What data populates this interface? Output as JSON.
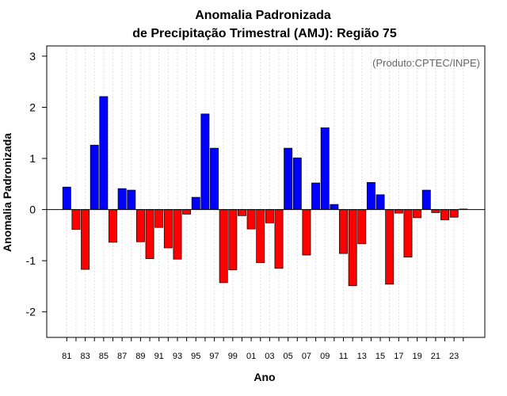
{
  "chart_data": {
    "type": "bar",
    "title": "Anomalia Padronizada",
    "subtitle": "de Precipitação Trimestral (AMJ): Região 75",
    "xlabel": "Ano",
    "ylabel": "Anomalia Padronizada",
    "credit": "(Produto:CPTEC/INPE)",
    "ylim": [
      -2.5,
      3.2
    ],
    "yticks": [
      "-2",
      "-1",
      "0",
      "1",
      "2",
      "3"
    ],
    "ytick_values": [
      -2,
      -1,
      0,
      1,
      2,
      3
    ],
    "grid": "vertical dotted",
    "positive_color": "#0000ff",
    "negative_color": "#ff0000",
    "x": [
      1981,
      1982,
      1983,
      1984,
      1985,
      1986,
      1987,
      1988,
      1989,
      1990,
      1991,
      1992,
      1993,
      1994,
      1995,
      1996,
      1997,
      1998,
      1999,
      2000,
      2001,
      2002,
      2003,
      2004,
      2005,
      2006,
      2007,
      2008,
      2009,
      2010,
      2011,
      2012,
      2013,
      2014,
      2015,
      2016,
      2017,
      2018,
      2019,
      2020,
      2021,
      2022,
      2023,
      2024
    ],
    "values": [
      0.44,
      -0.39,
      -1.17,
      1.26,
      2.21,
      -0.64,
      0.41,
      0.38,
      -0.63,
      -0.96,
      -0.35,
      -0.75,
      -0.97,
      -0.09,
      0.24,
      1.87,
      1.2,
      -1.43,
      -1.18,
      -0.12,
      -0.38,
      -1.04,
      -0.26,
      -1.15,
      1.2,
      1.01,
      -0.89,
      0.52,
      1.6,
      0.1,
      -0.86,
      -1.49,
      -0.67,
      0.53,
      0.29,
      -1.46,
      -0.07,
      -0.93,
      -0.16,
      0.38,
      -0.06,
      -0.2,
      -0.15,
      0.01
    ],
    "xtick_labels": [
      "81",
      "83",
      "85",
      "87",
      "89",
      "91",
      "93",
      "95",
      "97",
      "99",
      "01",
      "03",
      "05",
      "07",
      "09",
      "11",
      "13",
      "15",
      "17",
      "19",
      "21",
      "23"
    ]
  }
}
